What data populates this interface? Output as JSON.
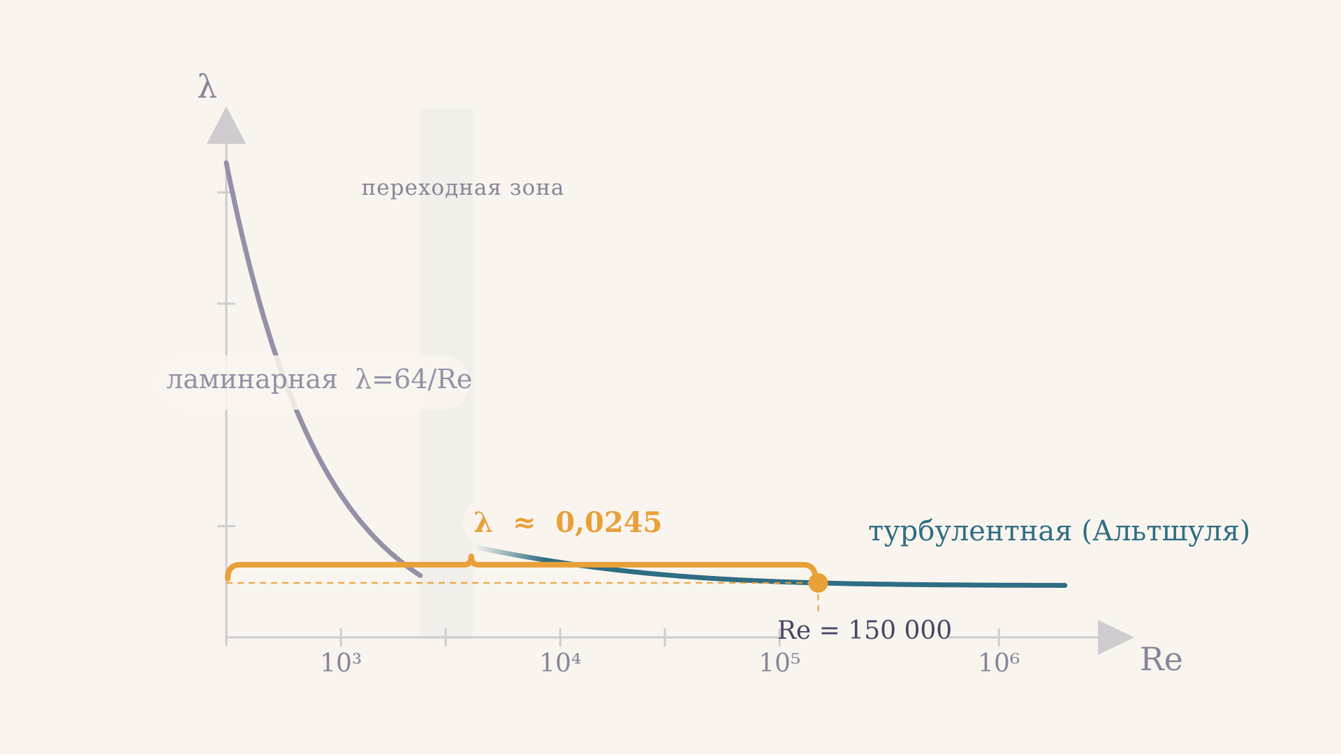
{
  "colors": {
    "background": "#faf4ee",
    "axis": "#cfcbce",
    "laminar": "#958fa7",
    "turbulent": "#2e6e84",
    "highlight": "#e8a038",
    "text_muted": "#8a8399",
    "text_dark": "#4a4565",
    "zone": "#f2eee9"
  },
  "chart_data": {
    "type": "line",
    "x_scale": "log",
    "xlabel": "Re",
    "ylabel": "λ",
    "x_ticks": [
      "10³",
      "10⁴",
      "10⁵",
      "10⁶"
    ],
    "x_tick_values": [
      1000,
      10000,
      100000,
      1000000
    ],
    "x_minor_tick_values": [
      3000,
      30000
    ],
    "xlim": [
      300,
      3000000
    ],
    "ylim": [
      0,
      0.23
    ],
    "transition_zone": {
      "label": "переходная зона",
      "from": 2300,
      "to": 4000
    },
    "series": [
      {
        "name": "ламинарная  λ=64/Re",
        "formula": "λ=64/Re",
        "x_range": [
          300,
          2300
        ]
      },
      {
        "name": "турбулентная (Альтшуля)",
        "x_range": [
          4000,
          2000000
        ]
      }
    ],
    "highlight": {
      "re_value": 150000,
      "re_label": "Re = 150 000",
      "lambda_value": 0.0245,
      "lambda_label": "λ  ≈  0,0245"
    }
  }
}
